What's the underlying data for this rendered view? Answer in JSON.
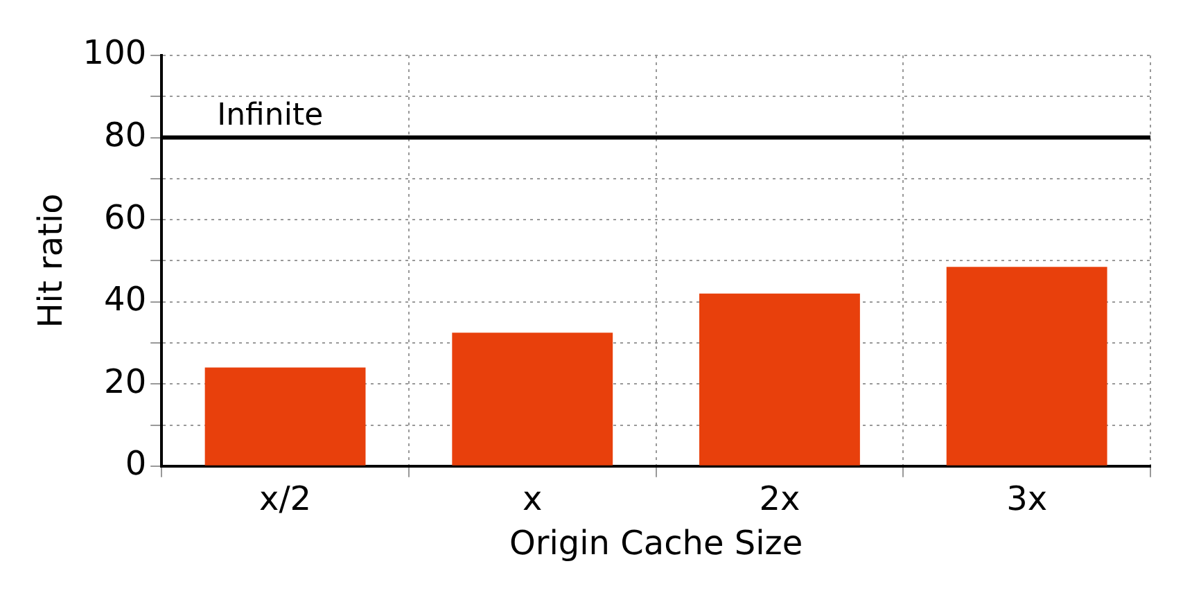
{
  "chart_data": {
    "type": "bar",
    "xlabel": "Origin Cache Size",
    "ylabel": "Hit ratio",
    "categories": [
      "x/2",
      "x",
      "2x",
      "3x"
    ],
    "values": [
      24,
      32.5,
      42,
      48.5
    ],
    "color": "#e8400c",
    "ylim": [
      0,
      100
    ],
    "yticks": [
      0,
      {
        "value": 10,
        "label": null
      },
      20,
      {
        "value": 30,
        "label": null
      },
      40,
      {
        "value": 50,
        "label": null
      },
      60,
      {
        "value": 70,
        "label": null
      },
      80,
      {
        "value": 90,
        "label": null
      },
      100
    ],
    "grid": true,
    "ref_lines": [
      {
        "axis": "y",
        "value": 80,
        "label": "Infinite",
        "color": "#000000"
      }
    ]
  }
}
